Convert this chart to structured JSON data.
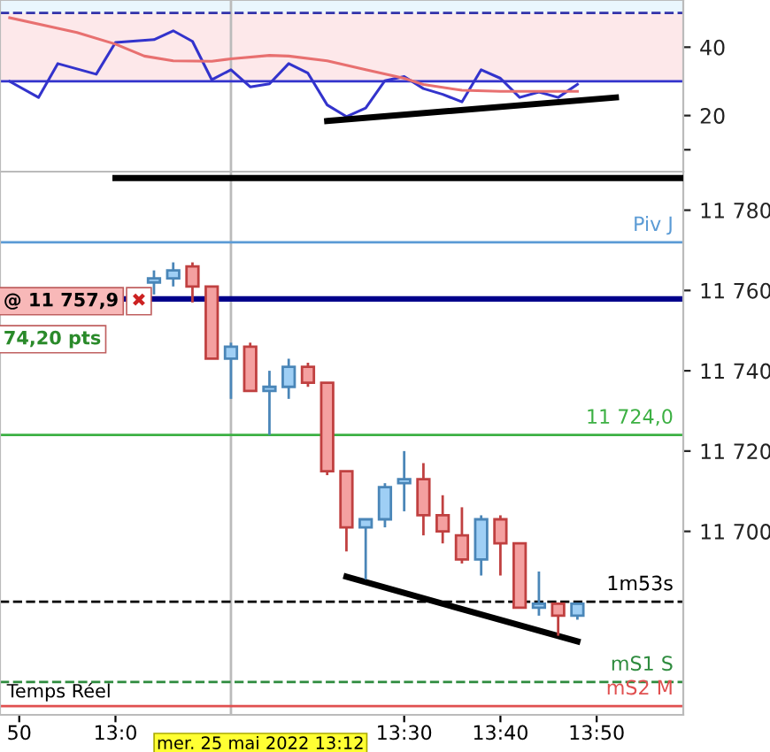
{
  "chart_data": [
    {
      "type": "line",
      "xlim": [
        "2022-05-25T12:48",
        "2022-05-25T13:59"
      ],
      "ylim": [
        3.6,
        53.8
      ],
      "yticks": [
        40,
        20,
        {
          "value": 10,
          "label": null
        }
      ],
      "series": [
        {
          "color": "#3333cc",
          "x": [
            "2022-05-25T12:49",
            "2022-05-25T12:52",
            "2022-05-25T12:54",
            "2022-05-25T12:58",
            "2022-05-25T13:00",
            "2022-05-25T13:04",
            "2022-05-25T13:06",
            "2022-05-25T13:08",
            "2022-05-25T13:10",
            "2022-05-25T13:12",
            "2022-05-25T13:14",
            "2022-05-25T13:16",
            "2022-05-25T13:18",
            "2022-05-25T13:20",
            "2022-05-25T13:22",
            "2022-05-25T13:24",
            "2022-05-25T13:26",
            "2022-05-25T13:28",
            "2022-05-25T13:30",
            "2022-05-25T13:32",
            "2022-05-25T13:34",
            "2022-05-25T13:36",
            "2022-05-25T13:38",
            "2022-05-25T13:40",
            "2022-05-25T13:42",
            "2022-05-25T13:44",
            "2022-05-25T13:46",
            "2022-05-25T13:48"
          ],
          "values": [
            30.0,
            25.3,
            35.2,
            32.1,
            41.4,
            42.2,
            44.8,
            41.7,
            30.5,
            33.4,
            28.4,
            29.3,
            35.2,
            32.4,
            23.1,
            19.7,
            22.2,
            30.2,
            31.4,
            27.9,
            26.2,
            24.0,
            33.4,
            30.9,
            25.3,
            26.9,
            25.3,
            29.1
          ]
        },
        {
          "color": "#e87070",
          "x": [
            "2022-05-25T12:49",
            "2022-05-25T12:56",
            "2022-05-25T13:00",
            "2022-05-25T13:03",
            "2022-05-25T13:06",
            "2022-05-25T13:10",
            "2022-05-25T13:12",
            "2022-05-25T13:16",
            "2022-05-25T13:18",
            "2022-05-25T13:22",
            "2022-05-25T13:26",
            "2022-05-25T13:30",
            "2022-05-25T13:32",
            "2022-05-25T13:36",
            "2022-05-25T13:40",
            "2022-05-25T13:48"
          ],
          "values": [
            48.6,
            44.3,
            40.9,
            37.4,
            36.0,
            35.9,
            36.6,
            37.6,
            37.4,
            36.0,
            33.4,
            30.9,
            29.1,
            27.4,
            27.1,
            27.1
          ]
        },
        {
          "type": "line",
          "color": "#000000",
          "x": [
            "2022-05-25T13:22",
            "2022-05-25T13:52"
          ],
          "values": [
            18.4,
            25.3
          ]
        }
      ],
      "bands": [
        {
          "axis": "y",
          "from": 30,
          "to": 50,
          "color": "#fde8ea"
        },
        {
          "axis": "y",
          "from": 50,
          "to": 53.8,
          "color": "#eaf6fd"
        }
      ],
      "ref_lines": [
        {
          "axis": "y",
          "value": 50,
          "color": "#3333aa",
          "line_style": "dashed"
        },
        {
          "axis": "y",
          "value": 30,
          "color": "#3333cc",
          "line_style": "solid"
        },
        {
          "axis": "x",
          "value": "2022-05-25T13:12",
          "color": "#bbbbbb",
          "line_style": "solid"
        }
      ]
    },
    {
      "type": "candlestick",
      "xlim": [
        "2022-05-25T12:48",
        "2022-05-25T13:59"
      ],
      "ylim": [
        11654.3,
        11789.6
      ],
      "yticks": [
        {
          "value": 11780,
          "label": "11 780"
        },
        {
          "value": 11760,
          "label": "11 760"
        },
        {
          "value": 11740,
          "label": "11 740"
        },
        {
          "value": 11720,
          "label": "11 720"
        },
        {
          "value": 11700,
          "label": "11 700"
        }
      ],
      "xticks": [
        {
          "value": "2022-05-25T12:50",
          "label": "50"
        },
        {
          "value": "2022-05-25T13:00",
          "label": "13:0"
        },
        {
          "value": "2022-05-25T13:30",
          "label": "13:30"
        },
        {
          "value": "2022-05-25T13:40",
          "label": "13:40"
        },
        {
          "value": "2022-05-25T13:50",
          "label": "13:50"
        }
      ],
      "x": [
        "2022-05-25T13:04",
        "2022-05-25T13:06",
        "2022-05-25T13:08",
        "2022-05-25T13:10",
        "2022-05-25T13:12",
        "2022-05-25T13:14",
        "2022-05-25T13:16",
        "2022-05-25T13:18",
        "2022-05-25T13:20",
        "2022-05-25T13:22",
        "2022-05-25T13:24",
        "2022-05-25T13:26",
        "2022-05-25T13:28",
        "2022-05-25T13:30",
        "2022-05-25T13:32",
        "2022-05-25T13:34",
        "2022-05-25T13:36",
        "2022-05-25T13:38",
        "2022-05-25T13:40",
        "2022-05-25T13:42",
        "2022-05-25T13:44",
        "2022-05-25T13:46",
        "2022-05-25T13:48"
      ],
      "ohlc": [
        [
          11762,
          11765,
          11759,
          11763
        ],
        [
          11763,
          11767,
          11761,
          11765
        ],
        [
          11766,
          11767,
          11757,
          11761
        ],
        [
          11761,
          11761,
          11743,
          11743
        ],
        [
          11743,
          11747,
          11733,
          11746
        ],
        [
          11746,
          11747,
          11735,
          11735
        ],
        [
          11735,
          11740,
          11724,
          11736
        ],
        [
          11736,
          11743,
          11733,
          11741
        ],
        [
          11741,
          11742,
          11736,
          11737
        ],
        [
          11737,
          11737,
          11714,
          11715
        ],
        [
          11715,
          11715,
          11695,
          11701
        ],
        [
          11701,
          11703,
          11688,
          11703
        ],
        [
          11703,
          11712,
          11701,
          11711
        ],
        [
          11712,
          11720,
          11705,
          11713
        ],
        [
          11713,
          11717,
          11699,
          11704
        ],
        [
          11704,
          11709,
          11697,
          11700
        ],
        [
          11699,
          11706,
          11692,
          11693
        ],
        [
          11693,
          11704,
          11689,
          11703
        ],
        [
          11703,
          11704,
          11689,
          11697
        ],
        [
          11697,
          11697,
          11681,
          11681
        ],
        [
          11681,
          11690,
          11679,
          11682
        ],
        [
          11682,
          11682,
          11674,
          11679
        ],
        [
          11679,
          11682,
          11678,
          11682
        ]
      ],
      "colors": [
        "#9fcff5",
        "#9fcff5",
        "#f4a0a0",
        "#f4a0a0",
        "#9fcff5",
        "#f4a0a0",
        "#9fcff5",
        "#9fcff5",
        "#f4a0a0",
        "#f4a0a0",
        "#f4a0a0",
        "#9fcff5",
        "#9fcff5",
        "#9fcff5",
        "#f4a0a0",
        "#f4a0a0",
        "#f4a0a0",
        "#9fcff5",
        "#f4a0a0",
        "#f4a0a0",
        "#9fcff5",
        "#f4a0a0",
        "#9fcff5"
      ],
      "series": [
        {
          "type": "line",
          "color": "#000000",
          "x": [
            "2022-05-25T13:24",
            "2022-05-25T13:48"
          ],
          "values": [
            11688.7,
            11672.6
          ]
        },
        {
          "type": "line",
          "color": "#000000",
          "x": [
            "2022-05-25T13:00",
            "2022-05-25T13:59"
          ],
          "values": [
            11788,
            11788
          ]
        }
      ],
      "ref_lines": [
        {
          "axis": "y",
          "value": 11772,
          "label": "Piv J",
          "color": "#5b9bd5",
          "line_style": "solid"
        },
        {
          "axis": "y",
          "value": 11757.9,
          "color": "#00008b",
          "line_style": "solid"
        },
        {
          "axis": "y",
          "value": 11724,
          "label": "11 724,0",
          "color": "#3cb043",
          "line_style": "solid"
        },
        {
          "axis": "y",
          "value": 11682.5,
          "label": "1m53s",
          "color": "#000000",
          "line_style": "dashed"
        },
        {
          "axis": "y",
          "value": 11662.5,
          "label": "mS1 S",
          "color": "#2e8b3e",
          "line_style": "dashed"
        },
        {
          "axis": "y",
          "value": 11656.5,
          "label": "mS2 M",
          "color": "#e05050",
          "line_style": "solid"
        },
        {
          "axis": "x",
          "value": "2022-05-25T13:12",
          "label": "mer. 25 mai 2022 13:12",
          "color": "#bbbbbb",
          "line_style": "solid"
        }
      ],
      "annotations": [
        "@ 11 757,9",
        "✖",
        "74,20 pts",
        "Temps Réel"
      ]
    }
  ]
}
